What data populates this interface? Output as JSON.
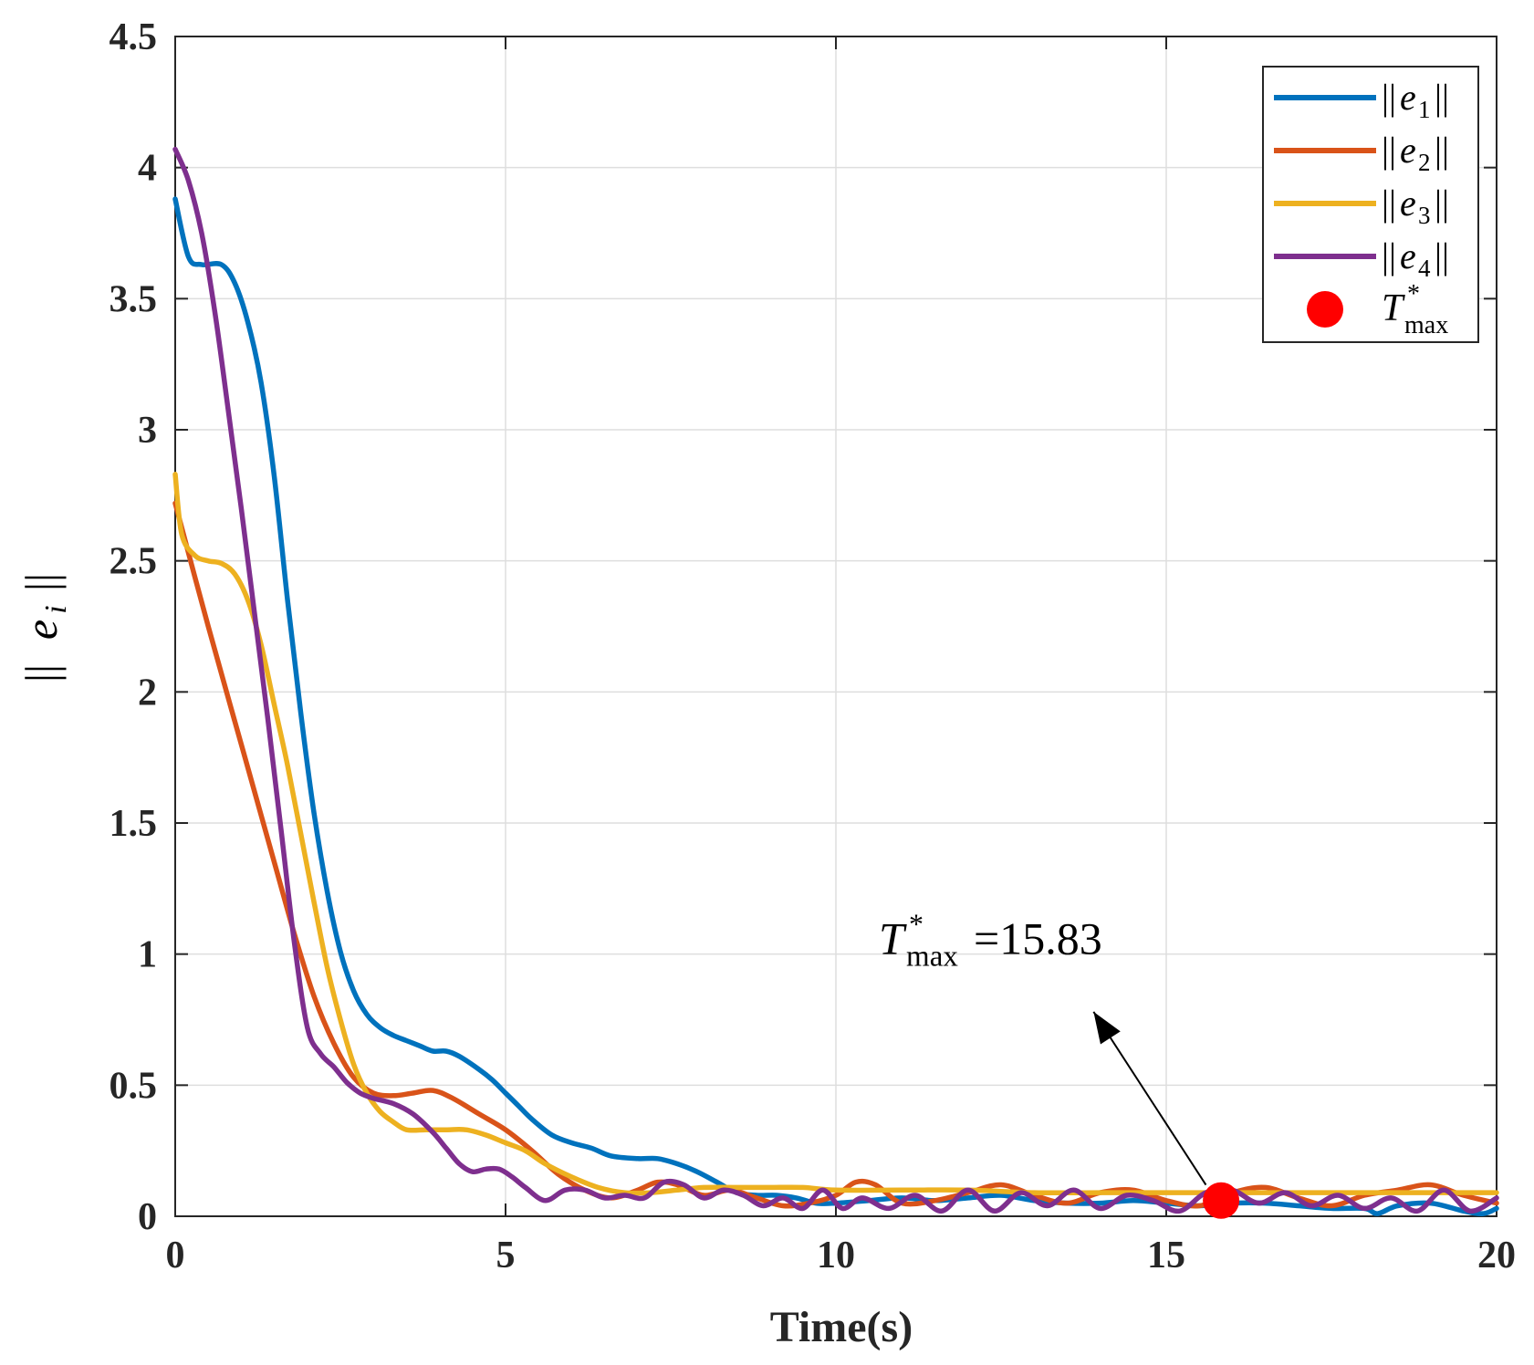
{
  "chart_data": {
    "type": "line",
    "title": "",
    "xlabel": "Time(s)",
    "ylabel": "||e_i||",
    "xlim": [
      0,
      20
    ],
    "ylim": [
      0,
      4.5
    ],
    "xticks": [
      0,
      5,
      10,
      15,
      20
    ],
    "xtick_labels": [
      "0",
      "5",
      "10",
      "15",
      "20"
    ],
    "yticks": [
      0,
      0.5,
      1,
      1.5,
      2,
      2.5,
      3,
      3.5,
      4,
      4.5
    ],
    "ytick_labels": [
      "0",
      "0.5",
      "1",
      "1.5",
      "2",
      "2.5",
      "3",
      "3.5",
      "4",
      "4.5"
    ],
    "grid": true,
    "legend_position": "top-right",
    "series": [
      {
        "name": "||e1||",
        "sub": "1",
        "color": "#0072BD",
        "x": [
          0,
          0.2,
          0.4,
          0.7,
          0.9,
          1.1,
          1.3,
          1.5,
          1.7,
          1.9,
          2.1,
          2.3,
          2.5,
          2.7,
          2.9,
          3.1,
          3.3,
          3.5,
          3.7,
          3.9,
          4.1,
          4.3,
          4.6,
          4.8,
          5.0,
          5.2,
          5.4,
          5.7,
          6.0,
          6.3,
          6.6,
          7.0,
          7.3,
          7.6,
          7.9,
          8.2,
          8.5,
          8.8,
          9.1,
          9.4,
          9.7,
          10.0,
          10.5,
          11.0,
          11.5,
          12.0,
          12.5,
          13.0,
          13.5,
          14.0,
          14.5,
          15.0,
          15.5,
          16.0,
          16.5,
          17.0,
          17.5,
          18.0,
          18.2,
          18.5,
          19.0,
          19.5,
          19.8,
          20.0
        ],
        "y": [
          3.88,
          3.66,
          3.63,
          3.63,
          3.56,
          3.41,
          3.18,
          2.82,
          2.35,
          1.92,
          1.54,
          1.24,
          1.01,
          0.86,
          0.77,
          0.72,
          0.69,
          0.67,
          0.65,
          0.63,
          0.63,
          0.61,
          0.56,
          0.52,
          0.47,
          0.42,
          0.37,
          0.31,
          0.28,
          0.26,
          0.23,
          0.22,
          0.22,
          0.2,
          0.17,
          0.13,
          0.09,
          0.08,
          0.08,
          0.07,
          0.05,
          0.05,
          0.06,
          0.07,
          0.06,
          0.07,
          0.08,
          0.06,
          0.05,
          0.05,
          0.06,
          0.05,
          0.04,
          0.05,
          0.05,
          0.04,
          0.03,
          0.03,
          0.01,
          0.04,
          0.05,
          0.02,
          0.01,
          0.03
        ]
      },
      {
        "name": "||e2||",
        "sub": "2",
        "color": "#D95319",
        "x": [
          0,
          0.5,
          1.0,
          1.5,
          1.8,
          2.1,
          2.4,
          2.7,
          3.0,
          3.3,
          3.6,
          3.9,
          4.2,
          4.6,
          5.0,
          5.4,
          5.8,
          6.2,
          6.6,
          7.0,
          7.3,
          7.6,
          8.0,
          8.4,
          8.8,
          9.2,
          9.6,
          10.0,
          10.3,
          10.6,
          11.0,
          11.5,
          12.0,
          12.5,
          13.0,
          13.5,
          14.0,
          14.5,
          15.0,
          15.5,
          16.0,
          16.5,
          17.0,
          17.5,
          18.0,
          18.5,
          19.0,
          19.5,
          20.0
        ],
        "y": [
          2.72,
          2.25,
          1.8,
          1.35,
          1.08,
          0.84,
          0.66,
          0.53,
          0.47,
          0.46,
          0.47,
          0.48,
          0.45,
          0.39,
          0.33,
          0.25,
          0.16,
          0.1,
          0.07,
          0.1,
          0.13,
          0.12,
          0.08,
          0.1,
          0.07,
          0.04,
          0.05,
          0.08,
          0.13,
          0.12,
          0.05,
          0.06,
          0.09,
          0.12,
          0.08,
          0.05,
          0.09,
          0.1,
          0.06,
          0.04,
          0.09,
          0.11,
          0.07,
          0.04,
          0.08,
          0.1,
          0.12,
          0.08,
          0.05
        ]
      },
      {
        "name": "||e3||",
        "sub": "3",
        "color": "#EDB120",
        "x": [
          0,
          0.1,
          0.3,
          0.5,
          0.7,
          0.9,
          1.1,
          1.3,
          1.5,
          1.7,
          1.9,
          2.1,
          2.3,
          2.5,
          2.7,
          2.9,
          3.1,
          3.3,
          3.5,
          3.8,
          4.1,
          4.4,
          4.7,
          5.0,
          5.3,
          5.6,
          6.0,
          6.4,
          6.8,
          7.2,
          7.6,
          8.0,
          8.5,
          9.0,
          9.5,
          10.0,
          11.0,
          12.0,
          13.0,
          14.0,
          15.0,
          16.0,
          17.0,
          18.0,
          19.0,
          20.0
        ],
        "y": [
          2.83,
          2.6,
          2.52,
          2.5,
          2.49,
          2.45,
          2.35,
          2.18,
          1.95,
          1.72,
          1.46,
          1.2,
          0.95,
          0.75,
          0.58,
          0.47,
          0.4,
          0.36,
          0.33,
          0.33,
          0.33,
          0.33,
          0.31,
          0.28,
          0.25,
          0.2,
          0.15,
          0.11,
          0.09,
          0.09,
          0.1,
          0.11,
          0.11,
          0.11,
          0.11,
          0.1,
          0.1,
          0.1,
          0.09,
          0.09,
          0.09,
          0.09,
          0.09,
          0.09,
          0.09,
          0.09
        ]
      },
      {
        "name": "||e4||",
        "sub": "4",
        "color": "#7E2F8E",
        "x": [
          0,
          0.2,
          0.4,
          0.6,
          0.8,
          1.0,
          1.2,
          1.4,
          1.6,
          1.8,
          2.0,
          2.2,
          2.4,
          2.6,
          2.8,
          3.0,
          3.3,
          3.6,
          3.9,
          4.1,
          4.3,
          4.5,
          4.7,
          4.9,
          5.1,
          5.3,
          5.6,
          5.9,
          6.2,
          6.5,
          6.8,
          7.1,
          7.4,
          7.7,
          8.0,
          8.3,
          8.6,
          8.9,
          9.2,
          9.5,
          9.8,
          10.1,
          10.4,
          10.8,
          11.2,
          11.6,
          12.0,
          12.4,
          12.8,
          13.2,
          13.6,
          14.0,
          14.4,
          14.8,
          15.2,
          15.6,
          16.0,
          16.4,
          16.8,
          17.2,
          17.6,
          18.0,
          18.4,
          18.8,
          19.2,
          19.6,
          20.0
        ],
        "y": [
          4.07,
          3.95,
          3.75,
          3.45,
          3.08,
          2.7,
          2.3,
          1.9,
          1.48,
          1.05,
          0.72,
          0.62,
          0.57,
          0.51,
          0.47,
          0.45,
          0.43,
          0.39,
          0.32,
          0.26,
          0.2,
          0.17,
          0.18,
          0.18,
          0.15,
          0.11,
          0.06,
          0.1,
          0.1,
          0.07,
          0.08,
          0.07,
          0.13,
          0.12,
          0.07,
          0.1,
          0.08,
          0.04,
          0.07,
          0.03,
          0.1,
          0.03,
          0.07,
          0.03,
          0.08,
          0.02,
          0.1,
          0.02,
          0.09,
          0.04,
          0.1,
          0.03,
          0.08,
          0.06,
          0.02,
          0.09,
          0.1,
          0.05,
          0.09,
          0.04,
          0.08,
          0.03,
          0.07,
          0.02,
          0.1,
          0.02,
          0.07
        ]
      }
    ],
    "marker": {
      "name": "T*max",
      "x": 15.83,
      "y": 0.06,
      "color": "#FF0000"
    },
    "annotation": {
      "prefix": "T",
      "sup": "*",
      "sub": "max",
      "value_text": "=15.83",
      "text_x": 10.65,
      "text_y": 1.0,
      "arrow_tail_x": 15.6,
      "arrow_tail_y": 0.12,
      "arrow_head_x": 13.9,
      "arrow_head_y": 0.78
    }
  }
}
